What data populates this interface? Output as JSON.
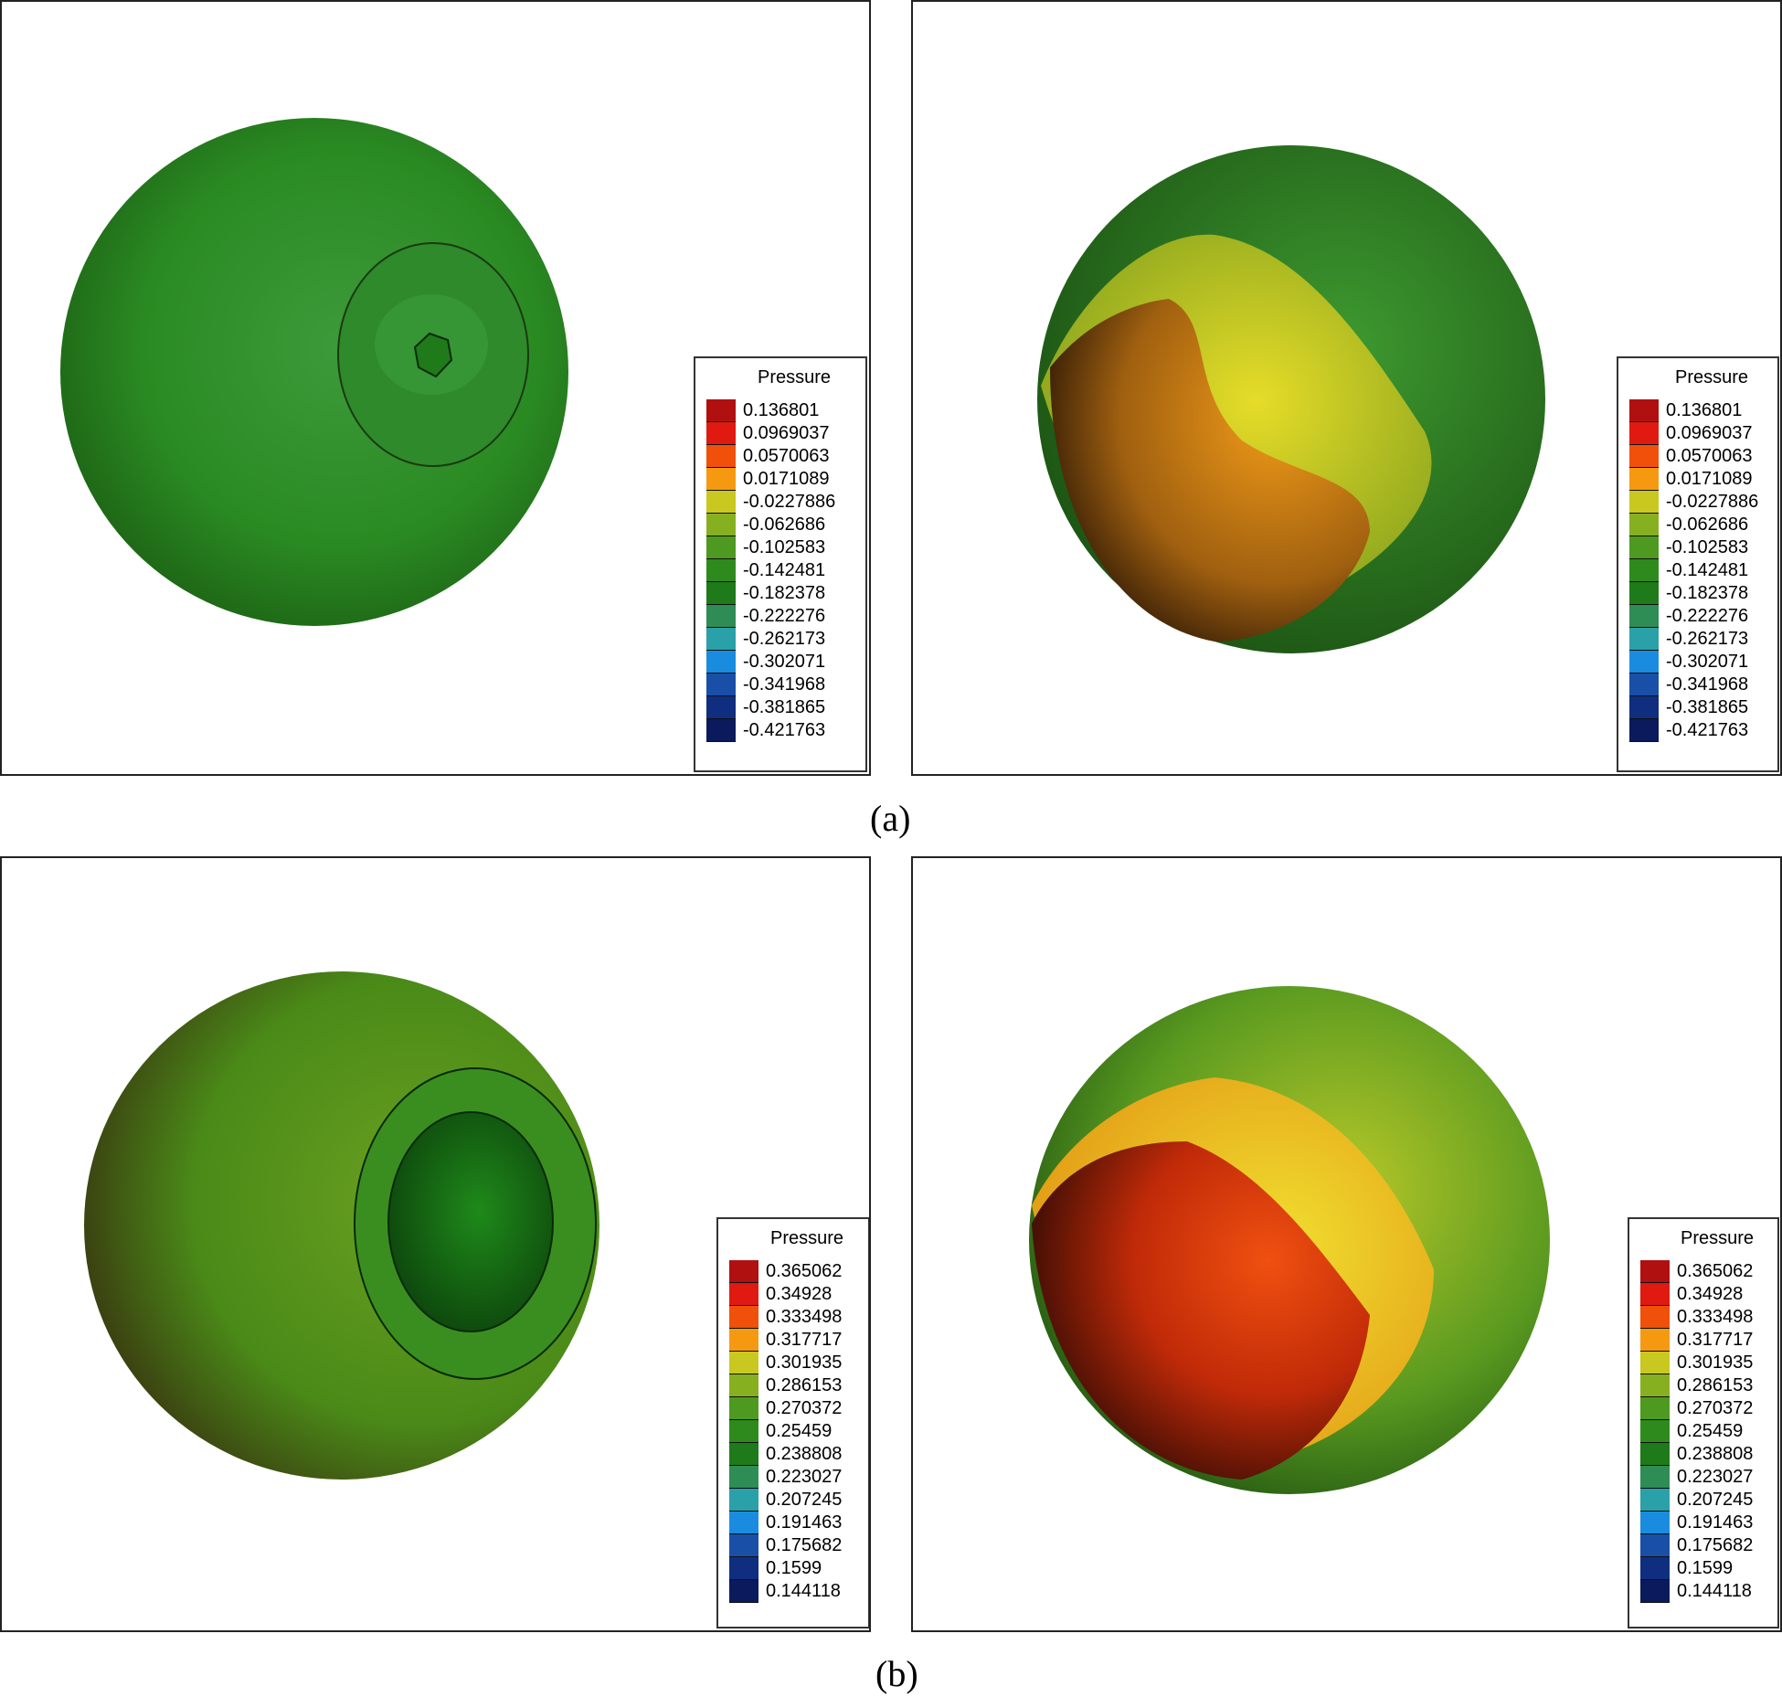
{
  "figure": {
    "captions": {
      "a": "(a)",
      "b": "(b)"
    },
    "legend_title": "Pressure",
    "legend_a": [
      "0.136801",
      "0.0969037",
      "0.0570063",
      "0.0171089",
      "-0.0227886",
      "-0.062686",
      "-0.102583",
      "-0.142481",
      "-0.182378",
      "-0.222276",
      "-0.262173",
      "-0.302071",
      "-0.341968",
      "-0.381865",
      "-0.421763"
    ],
    "legend_b": [
      "0.365062",
      "0.34928",
      "0.333498",
      "0.317717",
      "0.301935",
      "0.286153",
      "0.270372",
      "0.25459",
      "0.238808",
      "0.223027",
      "0.207245",
      "0.191463",
      "0.175682",
      "0.1599",
      "0.144118"
    ],
    "legend_colors": [
      "#b01010",
      "#e01a10",
      "#f0500a",
      "#f59a10",
      "#c9c820",
      "#86b020",
      "#4e9a20",
      "#2f8a1e",
      "#1f7a1a",
      "#2e8c55",
      "#2aa0a8",
      "#1a8ce0",
      "#1a4fa8",
      "#102e80",
      "#0a1a5c"
    ]
  }
}
